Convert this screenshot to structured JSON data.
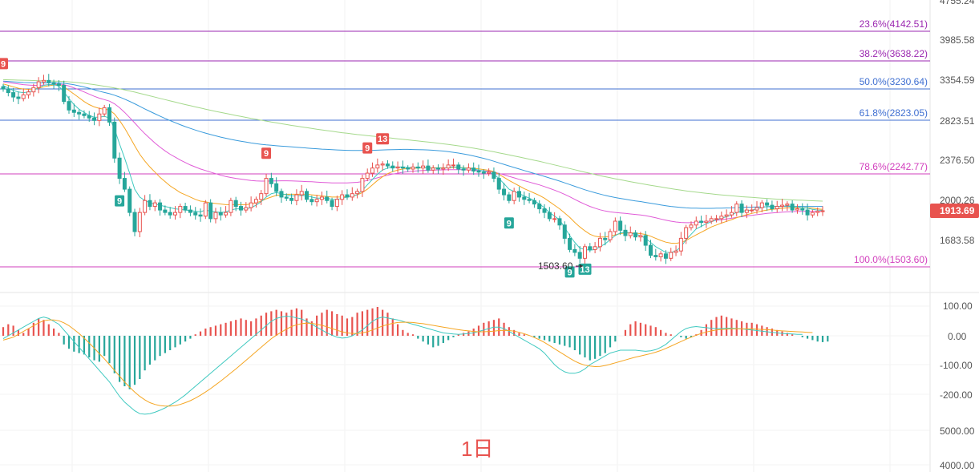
{
  "timeframe_label": "1日",
  "colors": {
    "up": "#e8534f",
    "down": "#26a69a",
    "fib_purple": "#9b27b0",
    "fib_blue": "#3f6fd1",
    "fib_magenta": "#d23fbd",
    "ma_fast": "#3fc9c0",
    "ma_mid": "#f5a623",
    "ma_slow": "#e05bd7",
    "ma_long": "#3a9bdc",
    "ma_xlong": "#a5d98c",
    "price_tag": "#e8534f",
    "macd_dif": "#3fc9c0",
    "macd_dea": "#f5a623"
  },
  "price_axis": {
    "ticks": [
      "4755.24",
      "3985.58",
      "3354.59",
      "2823.51",
      "2376.50",
      "2000.26",
      "1683.58"
    ]
  },
  "current_price": "1913.69",
  "low_marker": "1503.60",
  "fib_levels": [
    {
      "label": "23.6%(4142.51)",
      "price": 4142.51,
      "color": "#9b27b0"
    },
    {
      "label": "38.2%(3638.22)",
      "price": 3638.22,
      "color": "#9b27b0"
    },
    {
      "label": "50.0%(3230.64)",
      "price": 3230.64,
      "color": "#3f6fd1"
    },
    {
      "label": "61.8%(2823.05)",
      "price": 2823.05,
      "color": "#3f6fd1"
    },
    {
      "label": "78.6%(2242.77)",
      "price": 2242.77,
      "color": "#d23fbd"
    },
    {
      "label": "100.0%(1503.60)",
      "price": 1503.6,
      "color": "#d23fbd"
    }
  ],
  "td_markers": [
    {
      "label": "9",
      "type": "sell",
      "idx": 0
    },
    {
      "label": "9",
      "type": "sell",
      "idx": 52
    },
    {
      "label": "9",
      "type": "sell",
      "idx": 72
    },
    {
      "label": "13",
      "type": "sell",
      "idx": 75
    },
    {
      "label": "9",
      "type": "buy",
      "idx": 23
    },
    {
      "label": "9",
      "type": "buy",
      "idx": 100
    },
    {
      "label": "9",
      "type": "buy",
      "idx": 112
    },
    {
      "label": "13",
      "type": "buy",
      "idx": 115
    }
  ],
  "macd_axis": {
    "ticks": [
      "100.00",
      "0.00",
      "-100.00",
      "-200.00"
    ]
  },
  "volume_axis": {
    "ticks": [
      "5000.00",
      "4000.00"
    ]
  },
  "chart_data": {
    "type": "candlestick",
    "ylim": [
      1450,
      4755.24
    ],
    "close": [
      3230,
      3180,
      3120,
      3100,
      3150,
      3190,
      3250,
      3330,
      3350,
      3320,
      3300,
      3280,
      3060,
      2950,
      2920,
      2900,
      2880,
      2850,
      2820,
      2900,
      2980,
      2800,
      2400,
      2200,
      2100,
      1900,
      1750,
      1900,
      2000,
      1950,
      1980,
      1920,
      1900,
      1880,
      1900,
      1950,
      1920,
      1900,
      1880,
      1870,
      1980,
      1850,
      1900,
      1880,
      1900,
      2000,
      1950,
      1920,
      1940,
      1980,
      2010,
      2060,
      2200,
      2150,
      2080,
      2030,
      2020,
      2000,
      2050,
      2080,
      2010,
      1990,
      2010,
      2030,
      2000,
      1950,
      2010,
      2050,
      2030,
      2060,
      2080,
      2200,
      2250,
      2300,
      2330,
      2340,
      2320,
      2300,
      2310,
      2300,
      2290,
      2310,
      2300,
      2320,
      2280,
      2300,
      2290,
      2300,
      2330,
      2330,
      2290,
      2280,
      2300,
      2270,
      2260,
      2250,
      2260,
      2200,
      2100,
      2050,
      2000,
      2080,
      2030,
      2010,
      2000,
      1970,
      1930,
      1900,
      1850,
      1850,
      1800,
      1700,
      1620,
      1600,
      1560,
      1640,
      1620,
      1640,
      1700,
      1690,
      1750,
      1830,
      1760,
      1720,
      1740,
      1710,
      1720,
      1650,
      1580,
      1570,
      1590,
      1560,
      1600,
      1610,
      1700,
      1780,
      1800,
      1830,
      1820,
      1830,
      1850,
      1850,
      1870,
      1880,
      1900,
      1970,
      1900,
      1920,
      1920,
      1940,
      1980,
      1960,
      1930,
      1950,
      1960,
      1970,
      1920,
      1930,
      1920,
      1880,
      1900,
      1910,
      1913.69
    ],
    "ma_fast": [
      3280,
      3240,
      3210,
      3190,
      3180,
      3190,
      3210,
      3250,
      3280,
      3290,
      3290,
      3270,
      3190,
      3100,
      3020,
      2960,
      2920,
      2880,
      2860,
      2860,
      2870,
      2850,
      2720,
      2550,
      2400,
      2250,
      2100,
      2030,
      2000,
      1980,
      1970,
      1960,
      1950,
      1940,
      1930,
      1925,
      1920,
      1915,
      1910,
      1905,
      1920,
      1910,
      1905,
      1900,
      1905,
      1920,
      1930,
      1930,
      1930,
      1940,
      1960,
      1990,
      2030,
      2060,
      2070,
      2060,
      2050,
      2040,
      2040,
      2045,
      2040,
      2030,
      2020,
      2020,
      2020,
      2010,
      2010,
      2020,
      2030,
      2040,
      2050,
      2090,
      2140,
      2190,
      2240,
      2280,
      2300,
      2310,
      2310,
      2310,
      2305,
      2305,
      2305,
      2305,
      2300,
      2300,
      2300,
      2300,
      2305,
      2310,
      2305,
      2300,
      2295,
      2290,
      2280,
      2270,
      2260,
      2240,
      2200,
      2150,
      2100,
      2080,
      2060,
      2040,
      2020,
      2000,
      1970,
      1940,
      1900,
      1870,
      1840,
      1780,
      1720,
      1670,
      1630,
      1620,
      1615,
      1620,
      1640,
      1660,
      1690,
      1720,
      1740,
      1745,
      1740,
      1730,
      1720,
      1700,
      1670,
      1640,
      1620,
      1600,
      1600,
      1610,
      1640,
      1690,
      1730,
      1770,
      1790,
      1810,
      1825,
      1840,
      1855,
      1865,
      1880,
      1900,
      1910,
      1915,
      1920,
      1930,
      1940,
      1950,
      1950,
      1950,
      1950,
      1955,
      1950,
      1945,
      1940,
      1935,
      1925,
      1920,
      1918
    ],
    "ma_mid": [
      3300,
      3280,
      3260,
      3240,
      3230,
      3225,
      3230,
      3240,
      3260,
      3275,
      3285,
      3290,
      3260,
      3210,
      3160,
      3110,
      3060,
      3020,
      2990,
      2970,
      2960,
      2950,
      2900,
      2820,
      2730,
      2630,
      2530,
      2440,
      2370,
      2310,
      2260,
      2210,
      2170,
      2130,
      2100,
      2070,
      2050,
      2030,
      2010,
      1995,
      1990,
      1980,
      1975,
      1970,
      1965,
      1965,
      1965,
      1965,
      1965,
      1970,
      1980,
      1995,
      2015,
      2030,
      2045,
      2050,
      2055,
      2055,
      2055,
      2055,
      2055,
      2050,
      2045,
      2040,
      2035,
      2030,
      2030,
      2030,
      2035,
      2040,
      2050,
      2070,
      2100,
      2140,
      2180,
      2215,
      2245,
      2265,
      2280,
      2290,
      2295,
      2298,
      2300,
      2302,
      2302,
      2302,
      2302,
      2302,
      2303,
      2305,
      2305,
      2303,
      2300,
      2297,
      2292,
      2285,
      2278,
      2265,
      2240,
      2210,
      2180,
      2155,
      2130,
      2105,
      2085,
      2065,
      2045,
      2020,
      1990,
      1960,
      1930,
      1895,
      1860,
      1820,
      1785,
      1755,
      1730,
      1715,
      1710,
      1710,
      1715,
      1725,
      1735,
      1740,
      1740,
      1738,
      1735,
      1728,
      1715,
      1700,
      1685,
      1672,
      1665,
      1663,
      1670,
      1685,
      1705,
      1725,
      1745,
      1765,
      1785,
      1800,
      1815,
      1828,
      1842,
      1858,
      1870,
      1882,
      1892,
      1902,
      1912,
      1920,
      1925,
      1930,
      1934,
      1938,
      1940,
      1940,
      1940,
      1938,
      1935,
      1930,
      1926
    ],
    "ma_slow": [
      3330,
      3320,
      3310,
      3300,
      3290,
      3285,
      3280,
      3280,
      3285,
      3290,
      3295,
      3300,
      3290,
      3270,
      3245,
      3220,
      3190,
      3160,
      3130,
      3105,
      3085,
      3065,
      3030,
      2980,
      2920,
      2855,
      2790,
      2725,
      2665,
      2610,
      2560,
      2515,
      2475,
      2440,
      2410,
      2380,
      2355,
      2330,
      2310,
      2290,
      2275,
      2260,
      2245,
      2230,
      2218,
      2208,
      2200,
      2193,
      2186,
      2180,
      2176,
      2174,
      2174,
      2175,
      2176,
      2177,
      2177,
      2176,
      2174,
      2172,
      2170,
      2168,
      2165,
      2162,
      2160,
      2158,
      2157,
      2157,
      2158,
      2160,
      2163,
      2170,
      2180,
      2192,
      2205,
      2218,
      2230,
      2241,
      2250,
      2258,
      2264,
      2269,
      2273,
      2276,
      2278,
      2280,
      2281,
      2282,
      2283,
      2284,
      2284,
      2283,
      2282,
      2280,
      2277,
      2273,
      2268,
      2260,
      2248,
      2234,
      2219,
      2205,
      2191,
      2178,
      2165,
      2152,
      2139,
      2124,
      2108,
      2091,
      2073,
      2053,
      2032,
      2010,
      1988,
      1968,
      1950,
      1935,
      1922,
      1912,
      1905,
      1900,
      1896,
      1892,
      1888,
      1884,
      1880,
      1874,
      1866,
      1857,
      1847,
      1838,
      1830,
      1824,
      1820,
      1818,
      1818,
      1820,
      1823,
      1827,
      1832,
      1837,
      1842,
      1847,
      1853,
      1860,
      1866,
      1872,
      1877,
      1882,
      1887,
      1892,
      1896,
      1899,
      1902,
      1905,
      1907,
      1908,
      1909,
      1909,
      1909,
      1909,
      1909
    ],
    "ma_long": [
      3340,
      3335,
      3330,
      3325,
      3320,
      3318,
      3316,
      3315,
      3314,
      3314,
      3314,
      3314,
      3310,
      3300,
      3288,
      3274,
      3258,
      3240,
      3220,
      3200,
      3182,
      3165,
      3145,
      3120,
      3092,
      3062,
      3030,
      2997,
      2964,
      2932,
      2902,
      2873,
      2845,
      2818,
      2793,
      2769,
      2747,
      2726,
      2706,
      2688,
      2671,
      2655,
      2640,
      2626,
      2613,
      2601,
      2590,
      2580,
      2570,
      2561,
      2553,
      2546,
      2540,
      2535,
      2530,
      2526,
      2522,
      2518,
      2514,
      2510,
      2506,
      2502,
      2498,
      2494,
      2491,
      2488,
      2485,
      2483,
      2481,
      2480,
      2479,
      2479,
      2480,
      2481,
      2483,
      2485,
      2487,
      2489,
      2490,
      2491,
      2491,
      2490,
      2489,
      2487,
      2485,
      2482,
      2478,
      2473,
      2467,
      2460,
      2452,
      2443,
      2433,
      2422,
      2410,
      2397,
      2383,
      2368,
      2352,
      2336,
      2320,
      2305,
      2290,
      2275,
      2261,
      2247,
      2233,
      2219,
      2204,
      2189,
      2174,
      2158,
      2142,
      2126,
      2110,
      2095,
      2081,
      2068,
      2056,
      2045,
      2035,
      2026,
      2018,
      2011,
      2004,
      1997,
      1991,
      1984,
      1977,
      1970,
      1963,
      1956,
      1950,
      1945,
      1941,
      1938,
      1936,
      1935,
      1934,
      1934,
      1934,
      1935,
      1936,
      1937,
      1938,
      1940,
      1942,
      1943,
      1944,
      1945,
      1946,
      1947,
      1948,
      1949,
      1950,
      1950,
      1950,
      1950,
      1950,
      1950,
      1950,
      1950,
      1950
    ],
    "ma_xlong": [
      3360,
      3358,
      3356,
      3354,
      3352,
      3350,
      3348,
      3346,
      3344,
      3342,
      3340,
      3338,
      3335,
      3330,
      3324,
      3317,
      3309,
      3300,
      3290,
      3279,
      3268,
      3257,
      3245,
      3232,
      3218,
      3203,
      3187,
      3170,
      3153,
      3136,
      3119,
      3102,
      3085,
      3068,
      3052,
      3036,
      3020,
      3005,
      2990,
      2975,
      2961,
      2947,
      2933,
      2920,
      2907,
      2894,
      2881,
      2869,
      2857,
      2845,
      2834,
      2823,
      2812,
      2801,
      2791,
      2781,
      2771,
      2761,
      2752,
      2743,
      2734,
      2725,
      2716,
      2708,
      2700,
      2692,
      2684,
      2676,
      2669,
      2662,
      2655,
      2649,
      2643,
      2637,
      2631,
      2625,
      2619,
      2613,
      2607,
      2601,
      2595,
      2589,
      2583,
      2577,
      2571,
      2565,
      2558,
      2551,
      2544,
      2537,
      2529,
      2521,
      2513,
      2504,
      2495,
      2486,
      2476,
      2466,
      2455,
      2444,
      2433,
      2422,
      2411,
      2400,
      2389,
      2378,
      2367,
      2355,
      2343,
      2331,
      2319,
      2307,
      2295,
      2283,
      2271,
      2259,
      2248,
      2237,
      2226,
      2216,
      2206,
      2196,
      2187,
      2178,
      2169,
      2160,
      2152,
      2144,
      2136,
      2128,
      2120,
      2112,
      2105,
      2098,
      2091,
      2085,
      2079,
      2073,
      2068,
      2063,
      2058,
      2053,
      2049,
      2045,
      2041,
      2037,
      2033,
      2030,
      2027,
      2024,
      2021,
      2018,
      2015,
      2012,
      2010,
      2008,
      2006,
      2004,
      2002,
      2000,
      1998,
      1996,
      1995
    ],
    "macd_hist": [
      30,
      40,
      35,
      20,
      10,
      25,
      45,
      60,
      55,
      40,
      25,
      10,
      -30,
      -45,
      -55,
      -60,
      -65,
      -75,
      -85,
      -90,
      -70,
      -95,
      -130,
      -160,
      -175,
      -185,
      -170,
      -150,
      -120,
      -100,
      -85,
      -70,
      -60,
      -50,
      -40,
      -30,
      -20,
      -10,
      5,
      15,
      25,
      30,
      35,
      40,
      45,
      50,
      55,
      60,
      55,
      50,
      60,
      70,
      80,
      85,
      90,
      85,
      80,
      90,
      95,
      90,
      60,
      50,
      70,
      80,
      90,
      85,
      75,
      70,
      60,
      65,
      80,
      85,
      90,
      95,
      100,
      90,
      80,
      60,
      40,
      20,
      10,
      5,
      -10,
      -20,
      -30,
      -40,
      -35,
      -25,
      -15,
      -5,
      5,
      10,
      15,
      25,
      35,
      45,
      50,
      55,
      60,
      45,
      30,
      20,
      10,
      5,
      0,
      -5,
      -10,
      -15,
      -20,
      -25,
      -30,
      -35,
      -40,
      -50,
      -65,
      -75,
      -85,
      -80,
      -70,
      -60,
      -40,
      -20,
      0,
      20,
      40,
      50,
      45,
      40,
      35,
      30,
      20,
      10,
      5,
      0,
      -5,
      -10,
      -5,
      5,
      20,
      40,
      55,
      65,
      70,
      65,
      60,
      55,
      50,
      45,
      45,
      40,
      35,
      30,
      25,
      20,
      15,
      10,
      5,
      0,
      -5,
      -10,
      -15,
      -20,
      -22,
      -20
    ],
    "macd_dif": [
      -10,
      0,
      10,
      20,
      30,
      40,
      50,
      60,
      65,
      60,
      50,
      40,
      20,
      0,
      -20,
      -40,
      -60,
      -80,
      -100,
      -120,
      -140,
      -160,
      -185,
      -210,
      -230,
      -245,
      -260,
      -270,
      -272,
      -270,
      -265,
      -258,
      -250,
      -240,
      -230,
      -218,
      -205,
      -190,
      -175,
      -160,
      -145,
      -130,
      -115,
      -100,
      -85,
      -70,
      -55,
      -40,
      -25,
      -10,
      5,
      20,
      35,
      50,
      60,
      65,
      68,
      66,
      62,
      58,
      50,
      40,
      30,
      20,
      10,
      2,
      -5,
      -8,
      -6,
      0,
      10,
      20,
      35,
      50,
      60,
      65,
      62,
      58,
      55,
      50,
      45,
      40,
      35,
      30,
      25,
      20,
      15,
      10,
      8,
      6,
      5,
      6,
      8,
      10,
      15,
      20,
      25,
      30,
      30,
      25,
      15,
      5,
      -5,
      -15,
      -25,
      -35,
      -45,
      -60,
      -80,
      -100,
      -115,
      -125,
      -130,
      -130,
      -125,
      -115,
      -100,
      -90,
      -80,
      -70,
      -60,
      -55,
      -50,
      -50,
      -50,
      -50,
      -52,
      -54,
      -52,
      -48,
      -40,
      -30,
      -15,
      0,
      15,
      25,
      30,
      32,
      30,
      28,
      26,
      25,
      25,
      26,
      26,
      25,
      24,
      22,
      20,
      18,
      16,
      14,
      12,
      10,
      8,
      7,
      6,
      5,
      5
    ],
    "macd_dea": [
      -15,
      -10,
      -5,
      5,
      15,
      25,
      35,
      45,
      52,
      55,
      55,
      52,
      45,
      35,
      22,
      8,
      -8,
      -25,
      -43,
      -62,
      -80,
      -100,
      -120,
      -140,
      -160,
      -178,
      -195,
      -210,
      -222,
      -232,
      -238,
      -242,
      -244,
      -244,
      -242,
      -238,
      -232,
      -225,
      -216,
      -206,
      -195,
      -183,
      -170,
      -157,
      -143,
      -129,
      -115,
      -100,
      -85,
      -70,
      -55,
      -40,
      -25,
      -10,
      2,
      13,
      23,
      32,
      38,
      42,
      44,
      43,
      40,
      36,
      31,
      25,
      19,
      14,
      10,
      8,
      8,
      10,
      14,
      20,
      27,
      34,
      39,
      43,
      46,
      47,
      47,
      46,
      44,
      42,
      39,
      36,
      33,
      30,
      27,
      24,
      21,
      19,
      17,
      15,
      14,
      14,
      15,
      16,
      18,
      19,
      18,
      16,
      12,
      7,
      1,
      -6,
      -14,
      -23,
      -34,
      -45,
      -56,
      -67,
      -78,
      -88,
      -96,
      -102,
      -105,
      -107,
      -106,
      -103,
      -99,
      -94,
      -89,
      -84,
      -79,
      -74,
      -70,
      -66,
      -62,
      -57,
      -51,
      -44,
      -36,
      -28,
      -20,
      -12,
      -5,
      2,
      8,
      13,
      17,
      20,
      22,
      23,
      24,
      24,
      24,
      24,
      24,
      23,
      22,
      21,
      20,
      18,
      17,
      16,
      15,
      14,
      13,
      12,
      11
    ]
  }
}
